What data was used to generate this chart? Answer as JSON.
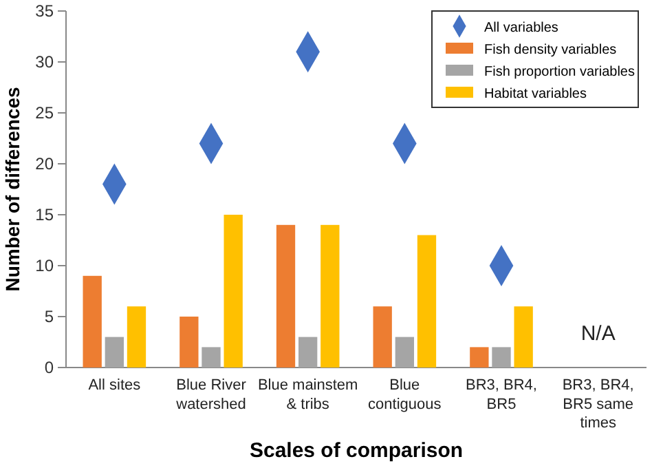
{
  "chart_data": {
    "type": "bar",
    "xlabel": "Scales of comparison",
    "ylabel": "Number of differences",
    "categories": [
      "All sites",
      "Blue River watershed",
      "Blue mainstem & tribs",
      "Blue contiguous",
      "BR3, BR4, BR5",
      "BR3, BR4, BR5 same times"
    ],
    "series": [
      {
        "name": "All variables",
        "type": "scatter",
        "marker": "diamond",
        "color": "#4472c4",
        "values": [
          18,
          22,
          31,
          22,
          10,
          null
        ]
      },
      {
        "name": "Fish density variables",
        "color": "#ed7d31",
        "values": [
          9,
          5,
          14,
          6,
          2,
          null
        ]
      },
      {
        "name": "Fish proportion variables",
        "color": "#a5a5a5",
        "values": [
          3,
          2,
          3,
          3,
          2,
          null
        ]
      },
      {
        "name": "Habitat variables",
        "color": "#ffc000",
        "values": [
          6,
          15,
          14,
          13,
          6,
          null
        ]
      }
    ],
    "ylim": [
      0,
      35
    ],
    "yticks": [
      0,
      5,
      10,
      15,
      20,
      25,
      30,
      35
    ],
    "grid": false,
    "legend": "top right",
    "annotations": [
      "N/A"
    ]
  }
}
